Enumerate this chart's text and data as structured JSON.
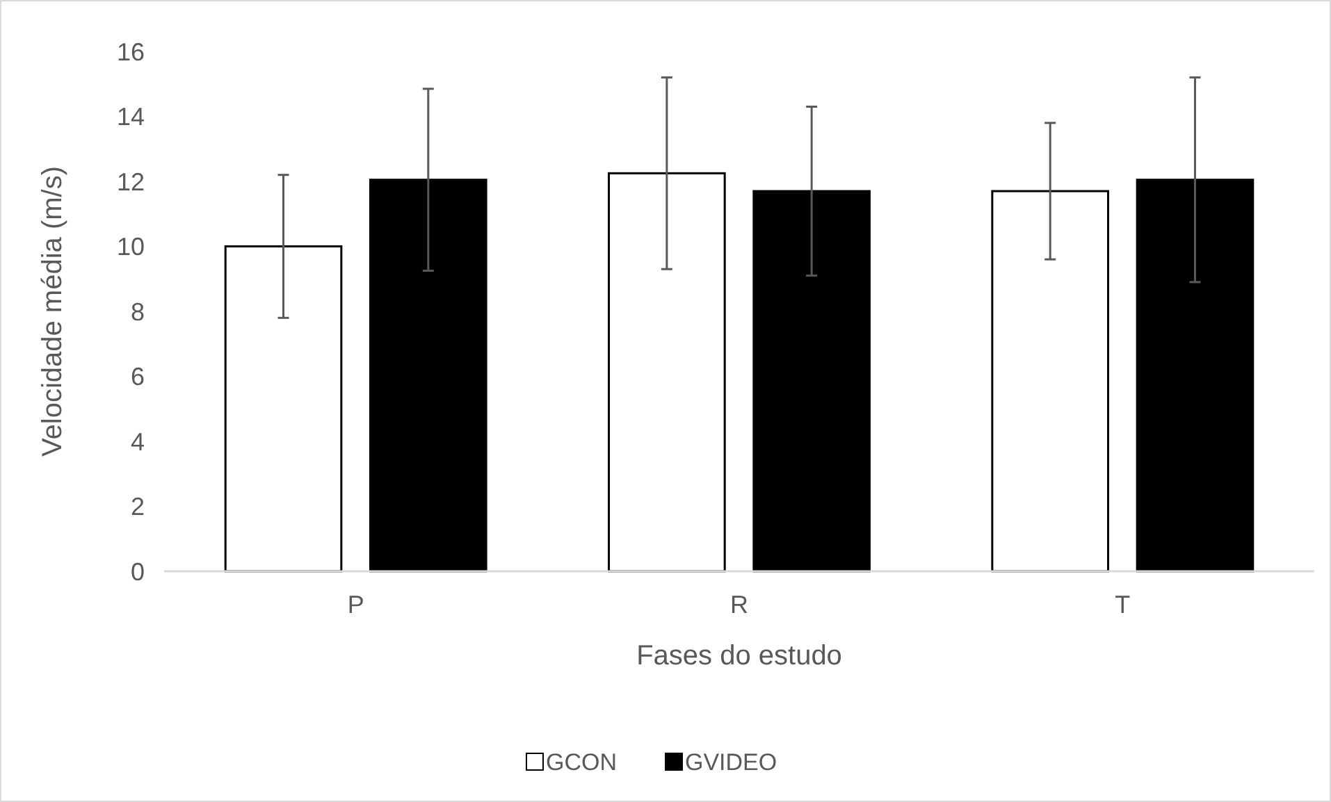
{
  "chart_data": {
    "type": "bar",
    "xlabel": "Fases do estudo",
    "ylabel": "Velocidade média (m/s)",
    "categories": [
      "P",
      "R",
      "T"
    ],
    "series": [
      {
        "name": "GCON",
        "color": "#ffffff",
        "values": [
          10.0,
          12.25,
          11.7
        ],
        "errors": [
          2.2,
          2.95,
          2.1
        ]
      },
      {
        "name": "GVIDEO",
        "color": "#000000",
        "values": [
          12.05,
          11.7,
          12.05
        ],
        "errors": [
          2.8,
          2.6,
          3.15
        ]
      }
    ],
    "ylim": [
      0,
      16
    ],
    "yticks": [
      0,
      2,
      4,
      6,
      8,
      10,
      12,
      14,
      16
    ],
    "grid": false,
    "legend": "bottom"
  }
}
